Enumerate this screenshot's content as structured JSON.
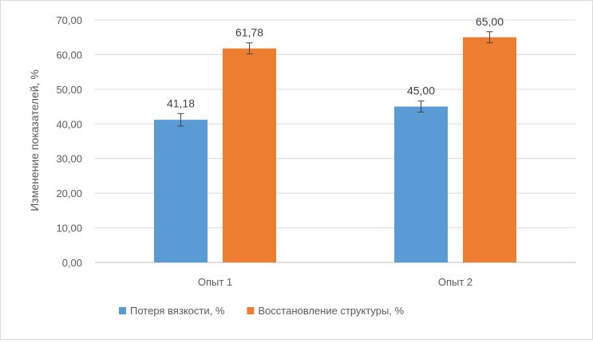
{
  "chart_data": {
    "type": "bar",
    "title": "",
    "xlabel": "",
    "ylabel": "Изменение показателей, %",
    "ylim": [
      0,
      70
    ],
    "ytick_step": 10,
    "ytick_labels": [
      "0,00",
      "10,00",
      "20,00",
      "30,00",
      "40,00",
      "50,00",
      "60,00",
      "70,00"
    ],
    "grid": true,
    "legend_position": "bottom",
    "categories": [
      "Опыт 1",
      "Опыт 2"
    ],
    "series": [
      {
        "name": "Потеря вязкости, %",
        "color": "#5b9bd5",
        "values": [
          41.18,
          45.0
        ],
        "labels": [
          "41,18",
          "45,00"
        ],
        "error": [
          1.8,
          1.6
        ]
      },
      {
        "name": "Восстановление структуры, %",
        "color": "#ed7d31",
        "values": [
          61.78,
          65.0
        ],
        "labels": [
          "61,78",
          "65,00"
        ],
        "error": [
          1.6,
          1.6
        ]
      }
    ]
  }
}
